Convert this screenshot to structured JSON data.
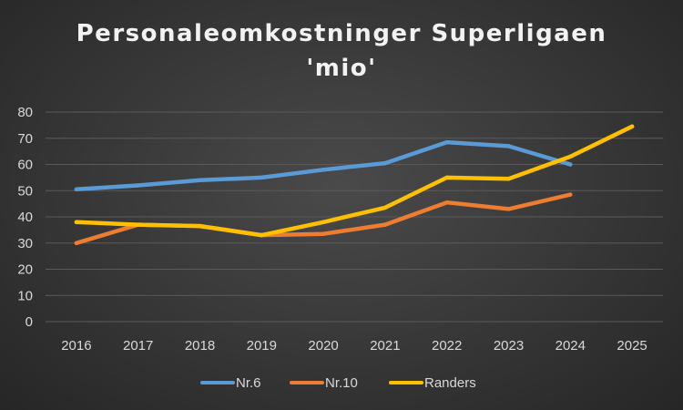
{
  "chart_data": {
    "type": "line",
    "title": "Personaleomkostninger Superligaen",
    "subtitle": "'mio'",
    "xlabel": "",
    "ylabel": "",
    "categories": [
      "2016",
      "2017",
      "2018",
      "2019",
      "2020",
      "2021",
      "2022",
      "2023",
      "2024",
      "2025"
    ],
    "ylim": [
      0,
      80
    ],
    "yticks": [
      0,
      10,
      20,
      30,
      40,
      50,
      60,
      70,
      80
    ],
    "grid": true,
    "legend_position": "bottom",
    "series": [
      {
        "name": "Nr.6",
        "color": "#5b9bd5",
        "values": [
          50.5,
          52,
          54,
          55,
          58,
          60.5,
          68.5,
          67,
          60,
          null
        ]
      },
      {
        "name": "Nr.10",
        "color": "#ed7d31",
        "values": [
          30,
          37,
          36.5,
          33,
          33.5,
          37,
          45.5,
          43,
          48.5,
          null
        ]
      },
      {
        "name": "Randers",
        "color": "#ffc000",
        "values": [
          38,
          37,
          36.5,
          33,
          38,
          43.5,
          55,
          54.5,
          63,
          74.5
        ]
      }
    ]
  }
}
